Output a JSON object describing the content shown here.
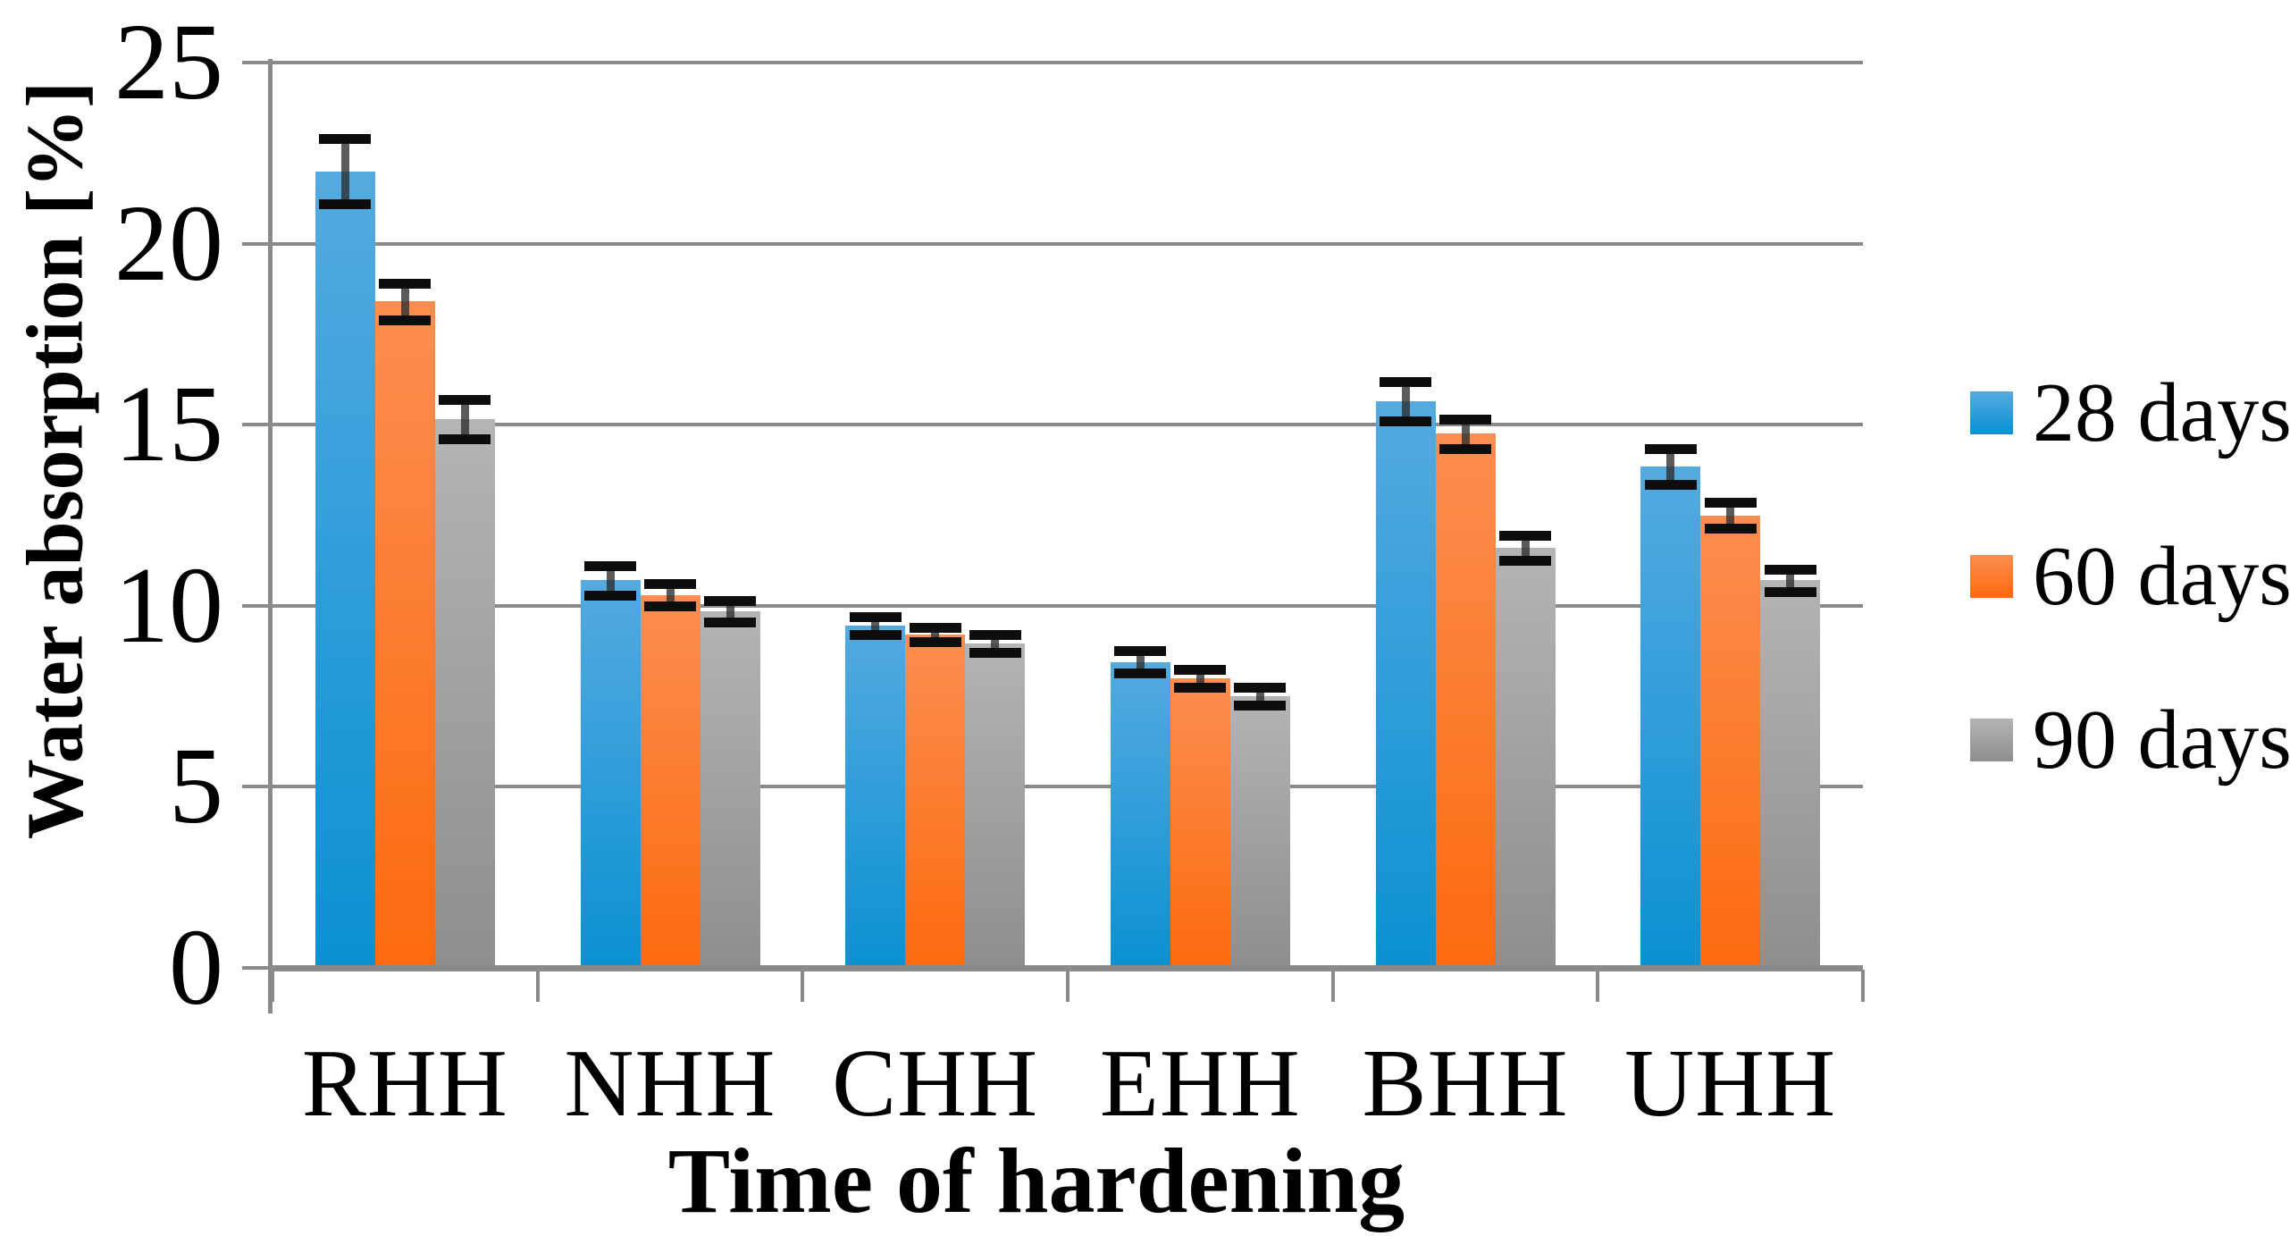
{
  "chart_data": {
    "type": "bar",
    "title": "",
    "xlabel": "Time of hardening",
    "ylabel": "Water absorption [%]",
    "categories": [
      "RHH",
      "NHH",
      "CHH",
      "EHH",
      "BHH",
      "UHH"
    ],
    "series": [
      {
        "name": "28 days",
        "color_top": "#55AADF",
        "color_bottom": "#0A91D3",
        "values": [
          22.0,
          10.7,
          9.45,
          8.45,
          15.65,
          13.85
        ],
        "errors": [
          0.9,
          0.4,
          0.25,
          0.3,
          0.55,
          0.5
        ]
      },
      {
        "name": "60 days",
        "color_top": "#FB8E50",
        "color_bottom": "#FC6A0E",
        "values": [
          18.4,
          10.3,
          9.2,
          8.0,
          14.75,
          12.5
        ],
        "errors": [
          0.5,
          0.3,
          0.2,
          0.25,
          0.4,
          0.35
        ]
      },
      {
        "name": "90 days",
        "color_top": "#B4B4B4",
        "color_bottom": "#8E8E8E",
        "values": [
          15.15,
          9.85,
          8.95,
          7.5,
          11.6,
          10.7
        ],
        "errors": [
          0.55,
          0.3,
          0.25,
          0.25,
          0.35,
          0.3
        ]
      }
    ],
    "ylim": [
      0,
      25
    ],
    "yticks": [
      0,
      5,
      10,
      15,
      20,
      25
    ],
    "grid": true,
    "legend_position": "right",
    "error_bar_color": "#0d0d0d",
    "axis_color": "#8a8a8a",
    "background_color": "#ffffff"
  }
}
